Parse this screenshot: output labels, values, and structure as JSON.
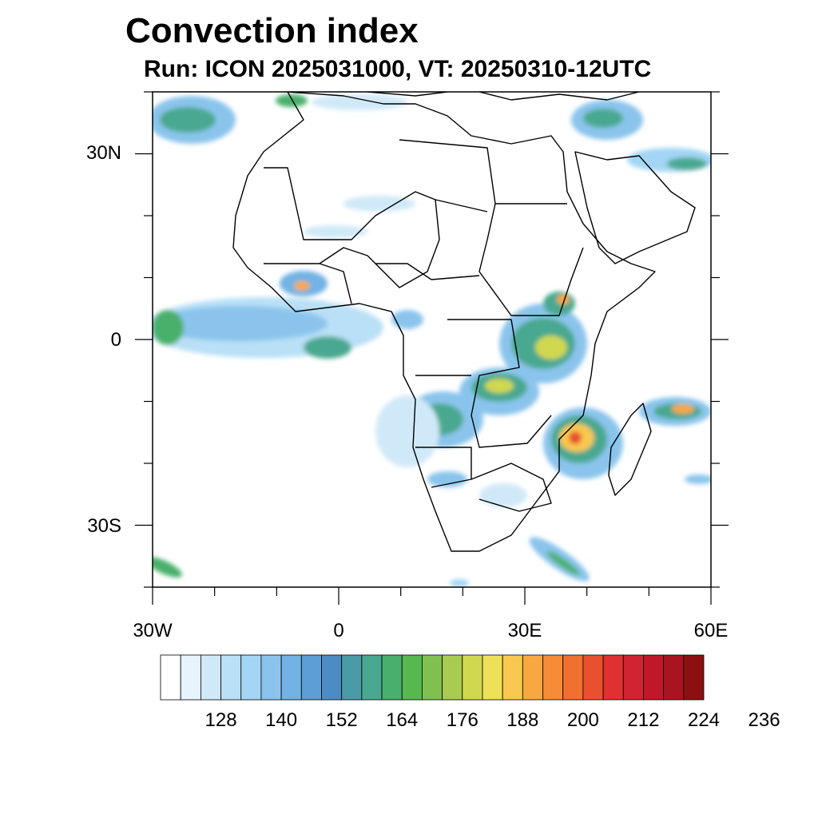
{
  "title": "Convection index",
  "subtitle": "Run: ICON 2025031000,  VT: 20250310-12UTC",
  "map": {
    "extent": {
      "lon_min": -30,
      "lon_max": 60,
      "lat_min": -40,
      "lat_max": 40
    },
    "lat_labels": [
      "30N",
      "0",
      "30S"
    ],
    "lon_labels": [
      "30W",
      "0",
      "30E",
      "60E"
    ]
  },
  "colorbar": {
    "labels": [
      "128",
      "140",
      "152",
      "164",
      "176",
      "188",
      "200",
      "212",
      "224",
      "236"
    ],
    "colors": [
      "#ffffff",
      "#e8f4fc",
      "#d0e9f8",
      "#b9e0f6",
      "#a2d6f4",
      "#8ac4ec",
      "#72b2e4",
      "#5d9ed6",
      "#4c8cc4",
      "#4a9aa8",
      "#48a890",
      "#48b06c",
      "#56b84e",
      "#80c050",
      "#a8cc50",
      "#d0d850",
      "#eee058",
      "#f8c850",
      "#f8a840",
      "#f48c38",
      "#f07030",
      "#e85030",
      "#e03030",
      "#d02430",
      "#c01828",
      "#aa1420",
      "#8c1010"
    ]
  }
}
